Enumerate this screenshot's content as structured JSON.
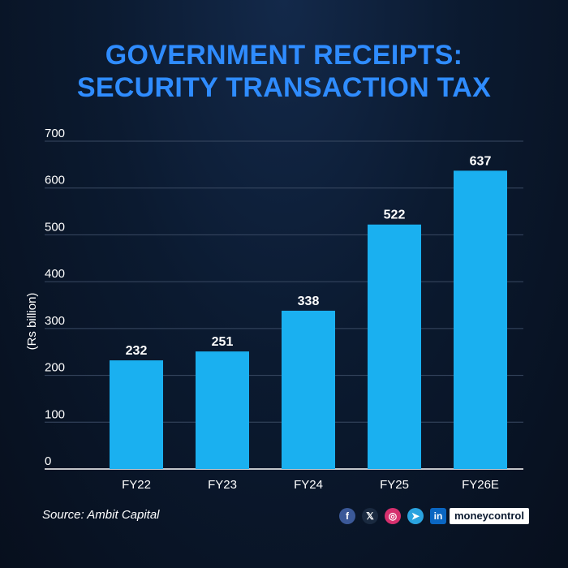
{
  "header": {
    "title_line1": "GOVERNMENT RECEIPTS:",
    "title_line2": "SECURITY TRANSACTION TAX"
  },
  "chart_data": {
    "type": "bar",
    "categories": [
      "FY22",
      "FY23",
      "FY24",
      "FY25",
      "FY26E"
    ],
    "values": [
      232,
      251,
      338,
      522,
      637
    ],
    "data_labels": [
      "232",
      "251",
      "338",
      "522",
      "637"
    ],
    "ylabel": "(Rs billion)",
    "ylim": [
      0,
      700
    ],
    "yticks": [
      0,
      100,
      200,
      300,
      400,
      500,
      600,
      700
    ],
    "grid": true,
    "bar_color": "#1ab0f0"
  },
  "footer": {
    "source": "Source: Ambit Capital",
    "social_icons": [
      "facebook-icon",
      "x-icon",
      "instagram-icon",
      "telegram-icon",
      "linkedin-icon"
    ],
    "social_glyphs": [
      "f",
      "𝕏",
      "◎",
      "➤",
      "in"
    ],
    "brand": "moneycontrol"
  },
  "colors": {
    "title": "#2f8cff",
    "background": "#0b1a30"
  }
}
